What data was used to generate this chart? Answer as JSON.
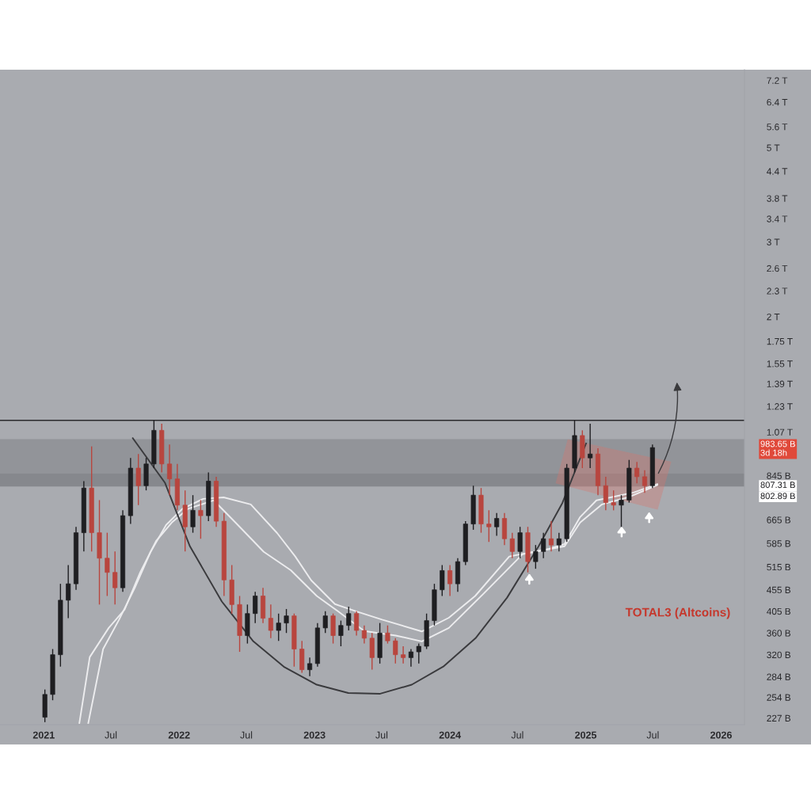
{
  "chart_data": {
    "type": "candlestick",
    "x": [
      "2021-01-04",
      "2021-01-25",
      "2021-02-15",
      "2021-03-08",
      "2021-03-29",
      "2021-04-19",
      "2021-05-10",
      "2021-05-31",
      "2021-06-21",
      "2021-07-12",
      "2021-08-02",
      "2021-08-23",
      "2021-09-13",
      "2021-10-04",
      "2021-10-25",
      "2021-11-15",
      "2021-12-06",
      "2021-12-27",
      "2022-01-17",
      "2022-02-07",
      "2022-02-28",
      "2022-03-21",
      "2022-04-11",
      "2022-05-02",
      "2022-05-23",
      "2022-06-13",
      "2022-07-04",
      "2022-07-25",
      "2022-08-15",
      "2022-09-05",
      "2022-09-26",
      "2022-10-17",
      "2022-11-07",
      "2022-11-28",
      "2022-12-19",
      "2023-01-09",
      "2023-01-30",
      "2023-02-20",
      "2023-03-13",
      "2023-04-03",
      "2023-04-24",
      "2023-05-15",
      "2023-06-05",
      "2023-06-26",
      "2023-07-17",
      "2023-08-07",
      "2023-08-28",
      "2023-09-18",
      "2023-10-09",
      "2023-10-30",
      "2023-11-20",
      "2023-12-11",
      "2024-01-01",
      "2024-01-22",
      "2024-02-12",
      "2024-03-04",
      "2024-03-25",
      "2024-04-15",
      "2024-05-06",
      "2024-05-27",
      "2024-06-17",
      "2024-07-08",
      "2024-07-29",
      "2024-08-19",
      "2024-09-09",
      "2024-09-30",
      "2024-10-21",
      "2024-11-11",
      "2024-12-02",
      "2024-12-23",
      "2025-01-13",
      "2025-02-03",
      "2025-02-24",
      "2025-03-17",
      "2025-04-07",
      "2025-04-28",
      "2025-05-19",
      "2025-06-09",
      "2025-06-30"
    ],
    "ohlc": [
      [
        228000000000.0,
        265000000000.0,
        222000000000.0,
        258000000000.0
      ],
      [
        258000000000.0,
        330000000000.0,
        250000000000.0,
        320000000000.0
      ],
      [
        320000000000.0,
        470000000000.0,
        300000000000.0,
        430000000000.0
      ],
      [
        430000000000.0,
        520000000000.0,
        390000000000.0,
        470000000000.0
      ],
      [
        470000000000.0,
        640000000000.0,
        455000000000.0,
        620000000000.0
      ],
      [
        620000000000.0,
        820000000000.0,
        560000000000.0,
        790000000000.0
      ],
      [
        790000000000.0,
        990000000000.0,
        560000000000.0,
        620000000000.0
      ],
      [
        620000000000.0,
        740000000000.0,
        420000000000.0,
        540000000000.0
      ],
      [
        540000000000.0,
        620000000000.0,
        440000000000.0,
        500000000000.0
      ],
      [
        500000000000.0,
        560000000000.0,
        420000000000.0,
        460000000000.0
      ],
      [
        460000000000.0,
        700000000000.0,
        450000000000.0,
        680000000000.0
      ],
      [
        680000000000.0,
        930000000000.0,
        650000000000.0,
        880000000000.0
      ],
      [
        880000000000.0,
        950000000000.0,
        720000000000.0,
        800000000000.0
      ],
      [
        800000000000.0,
        930000000000.0,
        780000000000.0,
        900000000000.0
      ],
      [
        900000000000.0,
        1140000000000.0,
        880000000000.0,
        1080000000000.0
      ],
      [
        1080000000000.0,
        1120000000000.0,
        860000000000.0,
        900000000000.0
      ],
      [
        900000000000.0,
        1000000000000.0,
        760000000000.0,
        830000000000.0
      ],
      [
        830000000000.0,
        900000000000.0,
        700000000000.0,
        720000000000.0
      ],
      [
        720000000000.0,
        780000000000.0,
        560000000000.0,
        640000000000.0
      ],
      [
        640000000000.0,
        760000000000.0,
        620000000000.0,
        700000000000.0
      ],
      [
        700000000000.0,
        740000000000.0,
        600000000000.0,
        680000000000.0
      ],
      [
        680000000000.0,
        860000000000.0,
        660000000000.0,
        820000000000.0
      ],
      [
        820000000000.0,
        840000000000.0,
        640000000000.0,
        660000000000.0
      ],
      [
        660000000000.0,
        690000000000.0,
        440000000000.0,
        480000000000.0
      ],
      [
        480000000000.0,
        520000000000.0,
        400000000000.0,
        420000000000.0
      ],
      [
        420000000000.0,
        440000000000.0,
        325000000000.0,
        355000000000.0
      ],
      [
        355000000000.0,
        420000000000.0,
        340000000000.0,
        400000000000.0
      ],
      [
        400000000000.0,
        450000000000.0,
        380000000000.0,
        440000000000.0
      ],
      [
        440000000000.0,
        460000000000.0,
        380000000000.0,
        390000000000.0
      ],
      [
        390000000000.0,
        420000000000.0,
        350000000000.0,
        365000000000.0
      ],
      [
        365000000000.0,
        400000000000.0,
        345000000000.0,
        380000000000.0
      ],
      [
        380000000000.0,
        410000000000.0,
        360000000000.0,
        395000000000.0
      ],
      [
        395000000000.0,
        400000000000.0,
        300000000000.0,
        330000000000.0
      ],
      [
        330000000000.0,
        345000000000.0,
        290000000000.0,
        295000000000.0
      ],
      [
        295000000000.0,
        315000000000.0,
        285000000000.0,
        305000000000.0
      ],
      [
        305000000000.0,
        380000000000.0,
        300000000000.0,
        370000000000.0
      ],
      [
        370000000000.0,
        405000000000.0,
        360000000000.0,
        395000000000.0
      ],
      [
        395000000000.0,
        400000000000.0,
        340000000000.0,
        355000000000.0
      ],
      [
        355000000000.0,
        385000000000.0,
        335000000000.0,
        375000000000.0
      ],
      [
        375000000000.0,
        415000000000.0,
        365000000000.0,
        400000000000.0
      ],
      [
        400000000000.0,
        405000000000.0,
        355000000000.0,
        365000000000.0
      ],
      [
        365000000000.0,
        375000000000.0,
        340000000000.0,
        350000000000.0
      ],
      [
        350000000000.0,
        360000000000.0,
        295000000000.0,
        315000000000.0
      ],
      [
        315000000000.0,
        380000000000.0,
        305000000000.0,
        360000000000.0
      ],
      [
        360000000000.0,
        375000000000.0,
        340000000000.0,
        345000000000.0
      ],
      [
        345000000000.0,
        350000000000.0,
        305000000000.0,
        320000000000.0
      ],
      [
        320000000000.0,
        335000000000.0,
        305000000000.0,
        315000000000.0
      ],
      [
        315000000000.0,
        330000000000.0,
        300000000000.0,
        325000000000.0
      ],
      [
        325000000000.0,
        340000000000.0,
        305000000000.0,
        335000000000.0
      ],
      [
        335000000000.0,
        400000000000.0,
        330000000000.0,
        385000000000.0
      ],
      [
        385000000000.0,
        470000000000.0,
        375000000000.0,
        455000000000.0
      ],
      [
        455000000000.0,
        520000000000.0,
        440000000000.0,
        505000000000.0
      ],
      [
        505000000000.0,
        520000000000.0,
        440000000000.0,
        470000000000.0
      ],
      [
        470000000000.0,
        540000000000.0,
        450000000000.0,
        530000000000.0
      ],
      [
        530000000000.0,
        660000000000.0,
        520000000000.0,
        650000000000.0
      ],
      [
        650000000000.0,
        800000000000.0,
        630000000000.0,
        760000000000.0
      ],
      [
        760000000000.0,
        790000000000.0,
        620000000000.0,
        650000000000.0
      ],
      [
        650000000000.0,
        700000000000.0,
        590000000000.0,
        640000000000.0
      ],
      [
        640000000000.0,
        690000000000.0,
        610000000000.0,
        670000000000.0
      ],
      [
        670000000000.0,
        690000000000.0,
        580000000000.0,
        600000000000.0
      ],
      [
        600000000000.0,
        620000000000.0,
        540000000000.0,
        560000000000.0
      ],
      [
        560000000000.0,
        640000000000.0,
        540000000000.0,
        620000000000.0
      ],
      [
        620000000000.0,
        640000000000.0,
        500000000000.0,
        530000000000.0
      ],
      [
        530000000000.0,
        580000000000.0,
        510000000000.0,
        560000000000.0
      ],
      [
        560000000000.0,
        620000000000.0,
        540000000000.0,
        600000000000.0
      ],
      [
        600000000000.0,
        660000000000.0,
        560000000000.0,
        580000000000.0
      ],
      [
        580000000000.0,
        620000000000.0,
        560000000000.0,
        600000000000.0
      ],
      [
        600000000000.0,
        900000000000.0,
        590000000000.0,
        880000000000.0
      ],
      [
        880000000000.0,
        1140000000000.0,
        860000000000.0,
        1050000000000.0
      ],
      [
        1050000000000.0,
        1080000000000.0,
        880000000000.0,
        930000000000.0
      ],
      [
        930000000000.0,
        1120000000000.0,
        880000000000.0,
        950000000000.0
      ],
      [
        950000000000.0,
        980000000000.0,
        760000000000.0,
        800000000000.0
      ],
      [
        800000000000.0,
        840000000000.0,
        700000000000.0,
        730000000000.0
      ],
      [
        730000000000.0,
        780000000000.0,
        700000000000.0,
        720000000000.0
      ],
      [
        720000000000.0,
        760000000000.0,
        640000000000.0,
        740000000000.0
      ],
      [
        740000000000.0,
        920000000000.0,
        730000000000.0,
        880000000000.0
      ],
      [
        880000000000.0,
        910000000000.0,
        810000000000.0,
        840000000000.0
      ],
      [
        840000000000.0,
        870000000000.0,
        770000000000.0,
        800000000000.0
      ],
      [
        800000000000.0,
        1000000000000.0,
        790000000000.0,
        983650000000.0
      ]
    ],
    "colors": [
      "#1e1e21",
      "#1e1e21",
      "#1e1e21",
      "#1e1e21",
      "#1e1e21",
      "#1e1e21",
      "#b8453e",
      "#b8453e",
      "#b8453e",
      "#b8453e",
      "#1e1e21",
      "#1e1e21",
      "#b8453e",
      "#1e1e21",
      "#1e1e21",
      "#b8453e",
      "#b8453e",
      "#b8453e",
      "#b8453e",
      "#1e1e21",
      "#b8453e",
      "#1e1e21",
      "#b8453e",
      "#b8453e",
      "#b8453e",
      "#b8453e",
      "#1e1e21",
      "#1e1e21",
      "#b8453e",
      "#b8453e",
      "#1e1e21",
      "#1e1e21",
      "#b8453e",
      "#b8453e",
      "#1e1e21",
      "#1e1e21",
      "#1e1e21",
      "#b8453e",
      "#1e1e21",
      "#1e1e21",
      "#b8453e",
      "#b8453e",
      "#b8453e",
      "#1e1e21",
      "#b8453e",
      "#b8453e",
      "#b8453e",
      "#1e1e21",
      "#1e1e21",
      "#1e1e21",
      "#1e1e21",
      "#1e1e21",
      "#b8453e",
      "#1e1e21",
      "#1e1e21",
      "#1e1e21",
      "#b8453e",
      "#b8453e",
      "#1e1e21",
      "#b8453e",
      "#b8453e",
      "#1e1e21",
      "#b8453e",
      "#1e1e21",
      "#1e1e21",
      "#b8453e",
      "#1e1e21",
      "#1e1e21",
      "#1e1e21",
      "#b8453e",
      "#1e1e21",
      "#b8453e",
      "#b8453e",
      "#b8453e",
      "#1e1e21",
      "#1e1e21",
      "#b8453e",
      "#b8453e",
      "#1e1e21"
    ],
    "series": [
      {
        "type": "line",
        "color": "#ececee",
        "x": [
          "2021-05-01",
          "2021-06-10",
          "2021-07-23",
          "2021-09-03",
          "2021-10-16",
          "2021-11-27",
          "2022-01-09",
          "2022-03-07",
          "2022-05-01",
          "2022-07-13",
          "2022-09-22",
          "2022-11-10",
          "2022-12-23",
          "2023-02-25",
          "2023-04-23",
          "2023-07-02",
          "2023-10-17",
          "2023-12-29",
          "2024-03-09",
          "2024-06-09",
          "2024-09-24",
          "2024-11-05",
          "2024-12-17",
          "2025-01-30",
          "2025-03-22",
          "2025-05-10",
          "2025-07-13"
        ],
        "values": [
          221000000000.0,
          330000000000.0,
          387000000000.0,
          459000000000.0,
          559000000000.0,
          647000000000.0,
          705000000000.0,
          745000000000.0,
          751000000000.0,
          723000000000.0,
          619000000000.0,
          545000000000.0,
          479000000000.0,
          421000000000.0,
          405000000000.0,
          387000000000.0,
          363000000000.0,
          391000000000.0,
          440000000000.0,
          545000000000.0,
          568000000000.0,
          583000000000.0,
          675000000000.0,
          739000000000.0,
          755000000000.0,
          771000000000.0,
          807310000000.0
        ]
      },
      {
        "type": "line",
        "color": "#ececee",
        "x": [
          "2021-04-07",
          "2021-05-05",
          "2021-06-25",
          "2021-08-07",
          "2021-09-18",
          "2021-10-31",
          "2021-12-12",
          "2022-01-24",
          "2022-04-04",
          "2022-06-08",
          "2022-08-17",
          "2022-10-29",
          "2023-01-07",
          "2023-03-05",
          "2023-05-15",
          "2023-08-08",
          "2023-10-17",
          "2023-12-29",
          "2024-03-31",
          "2024-07-15",
          "2024-11-05",
          "2024-12-17",
          "2025-02-14",
          "2025-04-25",
          "2025-07-13"
        ],
        "values": [
          221000000000.0,
          316000000000.0,
          370000000000.0,
          409000000000.0,
          500000000000.0,
          593000000000.0,
          655000000000.0,
          705000000000.0,
          739000000000.0,
          647000000000.0,
          559000000000.0,
          506000000000.0,
          440000000000.0,
          405000000000.0,
          364000000000.0,
          355000000000.0,
          344000000000.0,
          370000000000.0,
          445000000000.0,
          552000000000.0,
          576000000000.0,
          655000000000.0,
          723000000000.0,
          751000000000.0,
          802890000000.0
        ]
      },
      {
        "type": "line",
        "color": "#3a3a3d",
        "x": [
          "2021-08-29",
          "2021-11-24",
          "2022-01-30",
          "2022-04-26",
          "2022-07-20",
          "2022-10-12",
          "2023-01-07",
          "2023-04-02",
          "2023-06-27",
          "2023-09-20",
          "2023-12-14",
          "2024-03-10",
          "2024-06-03",
          "2024-08-27",
          "2024-10-30",
          "2025-01-02"
        ],
        "values": [
          1035000000000.0,
          812000000000.0,
          576000000000.0,
          427000000000.0,
          344000000000.0,
          299000000000.0,
          272000000000.0,
          260000000000.0,
          259000000000.0,
          272000000000.0,
          300000000000.0,
          350000000000.0,
          436000000000.0,
          576000000000.0,
          728000000000.0,
          1006000000000.0
        ]
      }
    ],
    "bands": [
      {
        "axis": "y",
        "from": 854000000000.0,
        "to": 1030000000000.0,
        "color": "#808287"
      },
      {
        "axis": "y",
        "from": 797000000000.0,
        "to": 854000000000.0,
        "color": "#6a6c71"
      }
    ],
    "ref_lines": [
      {
        "axis": "y",
        "value": 1140000000000.0,
        "color": "#2a2a2d"
      }
    ],
    "annotations": [
      "TOTAL3 (Altcoins)",
      "983.65 B\n3d 18h",
      "807.31 B",
      "802.89 B"
    ],
    "log": "y",
    "xlim": [
      "2020-09-05",
      "2026-03-05"
    ],
    "ylim": [
      219000000000.0,
      7630000000000.0
    ],
    "xticks": [
      {
        "value": "2021-01-01",
        "label": "2021"
      },
      {
        "value": "2021-07-01",
        "label": "Jul"
      },
      {
        "value": "2022-01-01",
        "label": "2022"
      },
      {
        "value": "2022-07-01",
        "label": "Jul"
      },
      {
        "value": "2023-01-01",
        "label": "2023"
      },
      {
        "value": "2023-07-01",
        "label": "Jul"
      },
      {
        "value": "2024-01-01",
        "label": "2024"
      },
      {
        "value": "2024-07-01",
        "label": "Jul"
      },
      {
        "value": "2025-01-01",
        "label": "2025"
      },
      {
        "value": "2025-07-01",
        "label": "Jul"
      },
      {
        "value": "2026-01-01",
        "label": "2026"
      }
    ],
    "yticks": [
      {
        "value": 227000000000.0,
        "label": "227 B"
      },
      {
        "value": 254000000000.0,
        "label": "254 B"
      },
      {
        "value": 284000000000.0,
        "label": "284 B"
      },
      {
        "value": 320000000000.0,
        "label": "320 B"
      },
      {
        "value": 360000000000.0,
        "label": "360 B"
      },
      {
        "value": 405000000000.0,
        "label": "405 B"
      },
      {
        "value": 455000000000.0,
        "label": "455 B"
      },
      {
        "value": 515000000000.0,
        "label": "515 B"
      },
      {
        "value": 585000000000.0,
        "label": "585 B"
      },
      {
        "value": 665000000000.0,
        "label": "665 B"
      },
      {
        "value": 845000000000.0,
        "label": "845 B"
      },
      {
        "value": 1070000000000.0,
        "label": "1.07 T"
      },
      {
        "value": 1230000000000.0,
        "label": "1.23 T"
      },
      {
        "value": 1390000000000.0,
        "label": "1.39 T"
      },
      {
        "value": 1550000000000.0,
        "label": "1.55 T"
      },
      {
        "value": 1750000000000.0,
        "label": "1.75 T"
      },
      {
        "value": 2000000000000.0,
        "label": "2 T"
      },
      {
        "value": 2300000000000.0,
        "label": "2.3 T"
      },
      {
        "value": 2600000000000.0,
        "label": "2.6 T"
      },
      {
        "value": 3000000000000.0,
        "label": "3 T"
      },
      {
        "value": 3400000000000.0,
        "label": "3.4 T"
      },
      {
        "value": 3800000000000.0,
        "label": "3.8 T"
      },
      {
        "value": 4400000000000.0,
        "label": "4.4 T"
      },
      {
        "value": 5000000000000.0,
        "label": "5 T"
      },
      {
        "value": 5600000000000.0,
        "label": "5.6 T"
      },
      {
        "value": 6400000000000.0,
        "label": "6.4 T"
      },
      {
        "value": 7200000000000.0,
        "label": "7.2 T"
      }
    ],
    "grid": false
  }
}
